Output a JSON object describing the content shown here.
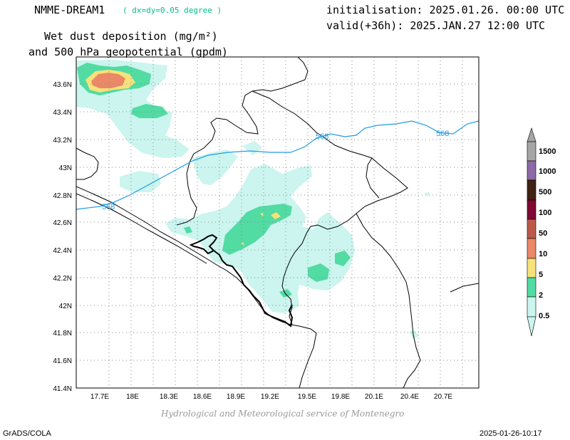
{
  "header": {
    "model_name": "NMME-DREAM1",
    "resolution": "( dx=dy=0.05 degree )",
    "init_line": "initialisation: 2025.01.26. 00:00 UTC",
    "valid_line": "valid(+36h): 2025.JAN.27 12:00 UTC",
    "title_line1": "Wet dust deposition (mg/m²)",
    "title_line2": "and 500 hPa geopotential (gpdm)"
  },
  "map": {
    "lon_ticks": [
      "17.7E",
      "18E",
      "18.3E",
      "18.6E",
      "18.9E",
      "19.2E",
      "19.5E",
      "19.8E",
      "20.1E",
      "20.4E",
      "20.7E"
    ],
    "lat_ticks": [
      "43.6N",
      "43.4N",
      "43.2N",
      "43N",
      "42.8N",
      "42.6N",
      "42.4N",
      "42.2N",
      "42N",
      "41.8N",
      "41.6N",
      "41.4N"
    ],
    "contour_labels": [
      "568",
      "568",
      "568"
    ],
    "contour_color": "#1e9be6"
  },
  "legend": {
    "levels": [
      "0.5",
      "2",
      "5",
      "10",
      "50",
      "100",
      "500",
      "1000",
      "1500"
    ],
    "colors": [
      "#cbf5ee",
      "#52dba3",
      "#f7e27a",
      "#ea8868",
      "#bb5a4a",
      "#7f0a33",
      "#412314",
      "#8d6aa6",
      "#a6a6a6"
    ]
  },
  "footer": {
    "credit": "Hydrological and Meteorological service of Montenegro",
    "left": "GrADS/COLA",
    "right": "2025-01-26-10:17"
  }
}
